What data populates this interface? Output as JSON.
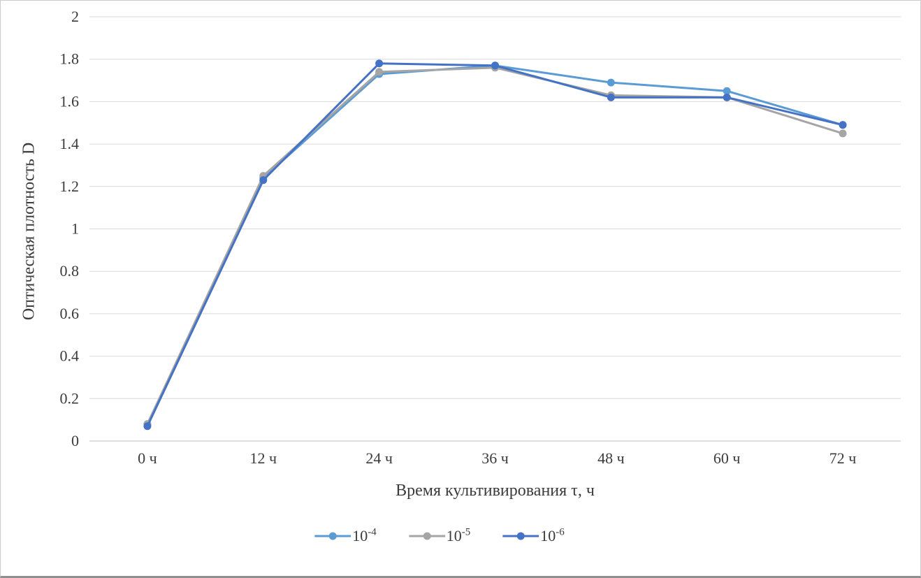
{
  "chart_data": {
    "type": "line",
    "title": "",
    "xlabel": "Время культивирования τ, ч",
    "ylabel": "Оптическая плотность D",
    "categories": [
      "0 ч",
      "12 ч",
      "24 ч",
      "36 ч",
      "48 ч",
      "60 ч",
      "72 ч"
    ],
    "ylim": [
      0,
      2
    ],
    "ytick_step": 0.2,
    "ytick_labels": [
      "0",
      "0.2",
      "0.4",
      "0.6",
      "0.8",
      "1",
      "1.2",
      "1.4",
      "1.6",
      "1.8",
      "2"
    ],
    "grid": "horizontal",
    "legend_position": "bottom",
    "colors": {
      "gridline": "#D9D9D9",
      "axis_line": "#BFBFBF",
      "text": "#3b3b3b"
    },
    "series": [
      {
        "name": "10^-4",
        "label_base": "10",
        "label_exp": "-4",
        "color": "#5B9BD5",
        "values": [
          0.08,
          1.24,
          1.73,
          1.77,
          1.69,
          1.65,
          1.49
        ]
      },
      {
        "name": "10^-5",
        "label_base": "10",
        "label_exp": "-5",
        "color": "#A5A5A5",
        "values": [
          0.08,
          1.25,
          1.74,
          1.76,
          1.63,
          1.62,
          1.45
        ]
      },
      {
        "name": "10^-6",
        "label_base": "10",
        "label_exp": "-6",
        "color": "#4472C4",
        "values": [
          0.07,
          1.23,
          1.78,
          1.77,
          1.62,
          1.62,
          1.49
        ]
      }
    ]
  }
}
